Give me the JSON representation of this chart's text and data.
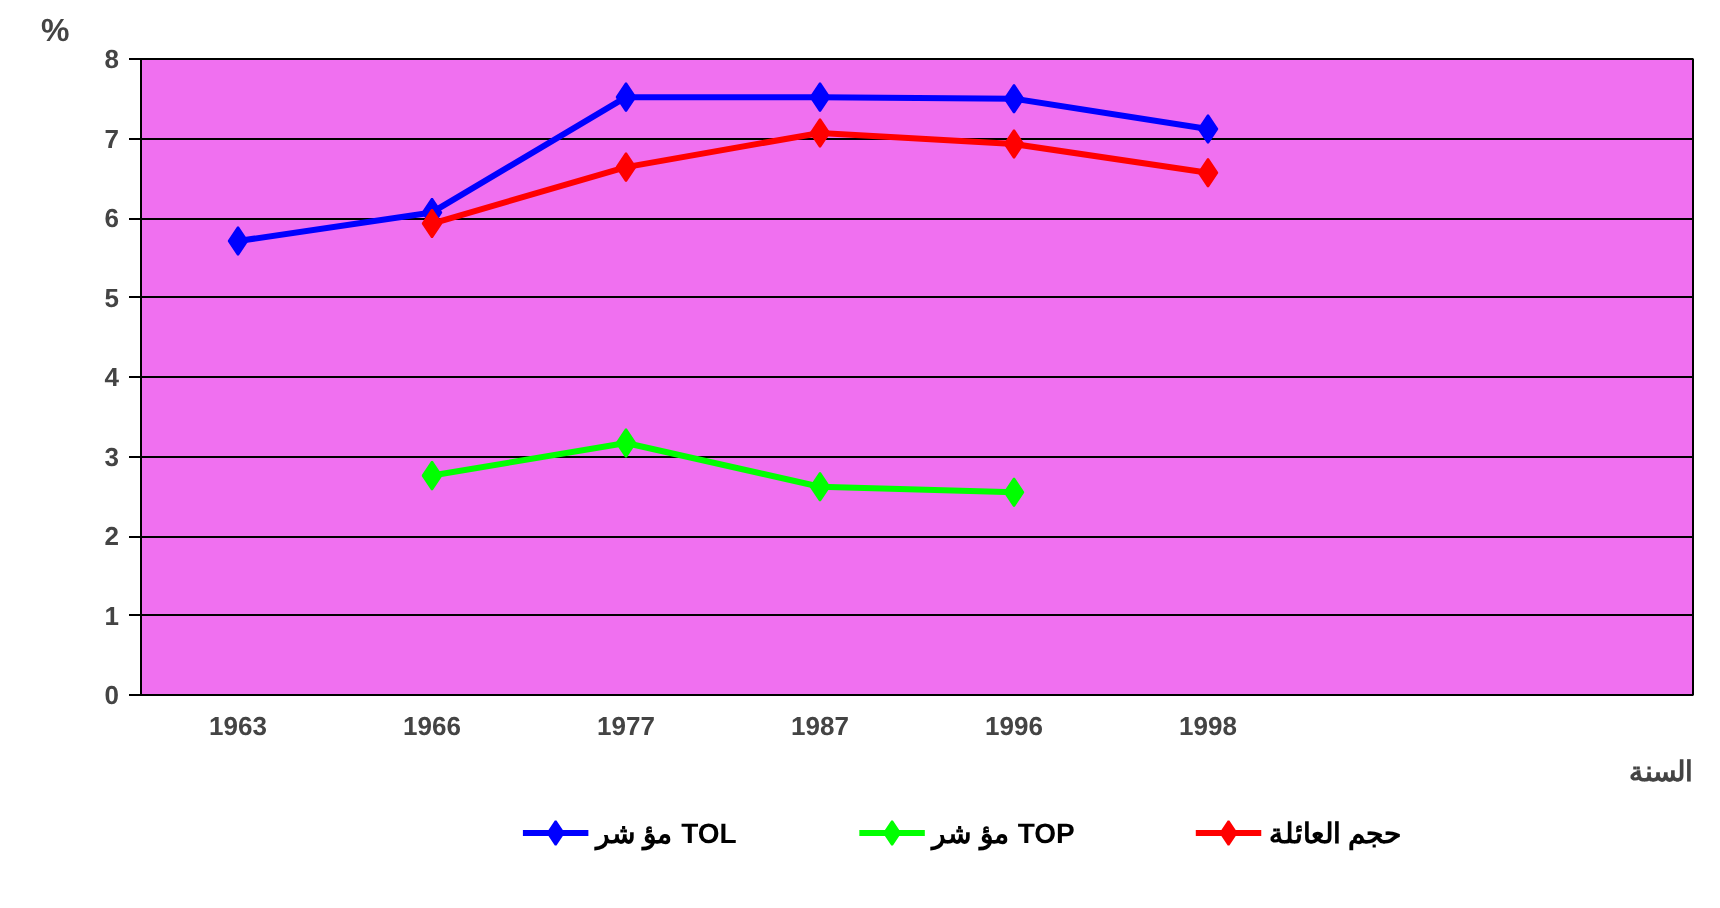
{
  "chart_data": {
    "type": "line",
    "xlabel": "السنة",
    "ylabel": "%",
    "categories": [
      "1963",
      "1966",
      "1977",
      "1987",
      "1996",
      "1998",
      null,
      null
    ],
    "series": [
      {
        "name": "مؤ شر TOL",
        "color": "#0000ff",
        "values": [
          5.71,
          6.07,
          7.52,
          7.52,
          7.5,
          7.12,
          null,
          null
        ]
      },
      {
        "name": "مؤ شر TOP",
        "color": "#00ff00",
        "values": [
          null,
          2.76,
          3.17,
          2.62,
          2.55,
          null,
          null,
          null
        ]
      },
      {
        "name": "حجم العائلة",
        "color": "#ff0000",
        "values": [
          null,
          5.93,
          6.64,
          7.07,
          6.93,
          6.57,
          null,
          null
        ]
      }
    ],
    "ylim": [
      0,
      8
    ],
    "yticks": [
      0,
      1,
      2,
      3,
      4,
      5,
      6,
      7,
      8
    ],
    "grid": "y",
    "legend": "bottom",
    "marker": "diamond",
    "line_style": "solid"
  }
}
